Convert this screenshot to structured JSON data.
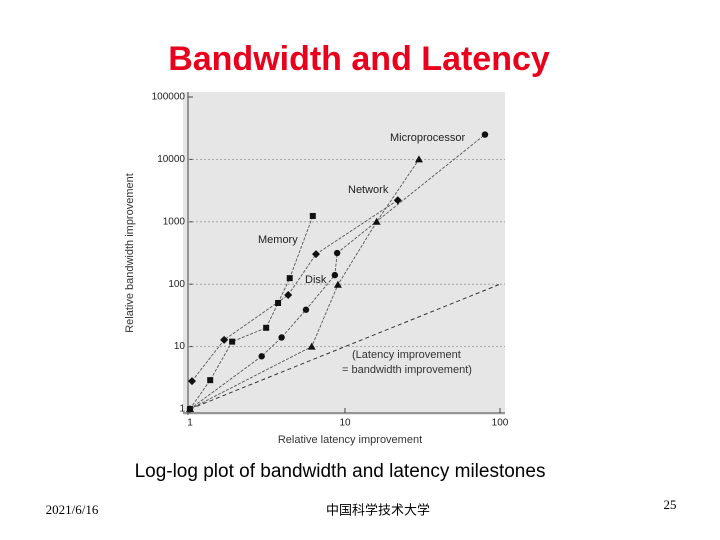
{
  "chart_data": {
    "type": "line",
    "title": "Bandwidth and Latency",
    "caption": "Log-log plot of bandwidth and latency milestones",
    "x_label": "Relative latency improvement",
    "y_label": "Relative bandwidth improvement",
    "log_x": true,
    "log_y": true,
    "grid": true,
    "xlim": [
      1,
      100
    ],
    "xticks": [
      1,
      10,
      100
    ],
    "ylim": [
      1,
      100000
    ],
    "yticks": [
      1,
      10,
      100,
      1000,
      10000,
      100000
    ],
    "series": [
      {
        "name": "Microprocessor",
        "marker": "circle",
        "color": "#111111",
        "x": [
          1,
          2.9,
          3.9,
          5.6,
          8.6,
          8.9,
          80
        ],
        "values": [
          1,
          7,
          14,
          39,
          140,
          316,
          25000
        ]
      },
      {
        "name": "Network",
        "marker": "diamond",
        "color": "#111111",
        "x": [
          1.03,
          1.66,
          4.3,
          6.5,
          21.9
        ],
        "values": [
          2.8,
          12.8,
          67,
          303,
          2220
        ]
      },
      {
        "name": "Memory",
        "marker": "square",
        "color": "#111111",
        "x": [
          1,
          1.35,
          1.87,
          3.1,
          3.7,
          4.4,
          6.2
        ],
        "values": [
          1,
          2.9,
          12,
          20,
          50,
          125,
          1240
        ]
      },
      {
        "name": "Disk",
        "marker": "triangle",
        "color": "#111111",
        "x": [
          1,
          6.1,
          9,
          16,
          30
        ],
        "values": [
          1,
          10,
          98,
          1000,
          10000
        ]
      }
    ],
    "reference_line": {
      "x": [
        1,
        100
      ],
      "values": [
        1,
        100
      ]
    },
    "annotations": [
      "(Latency improvement",
      "= bandwidth improvement)"
    ]
  },
  "footer": {
    "date": "2021/6/16",
    "institution": "中国科学技术大学",
    "page": "25"
  }
}
